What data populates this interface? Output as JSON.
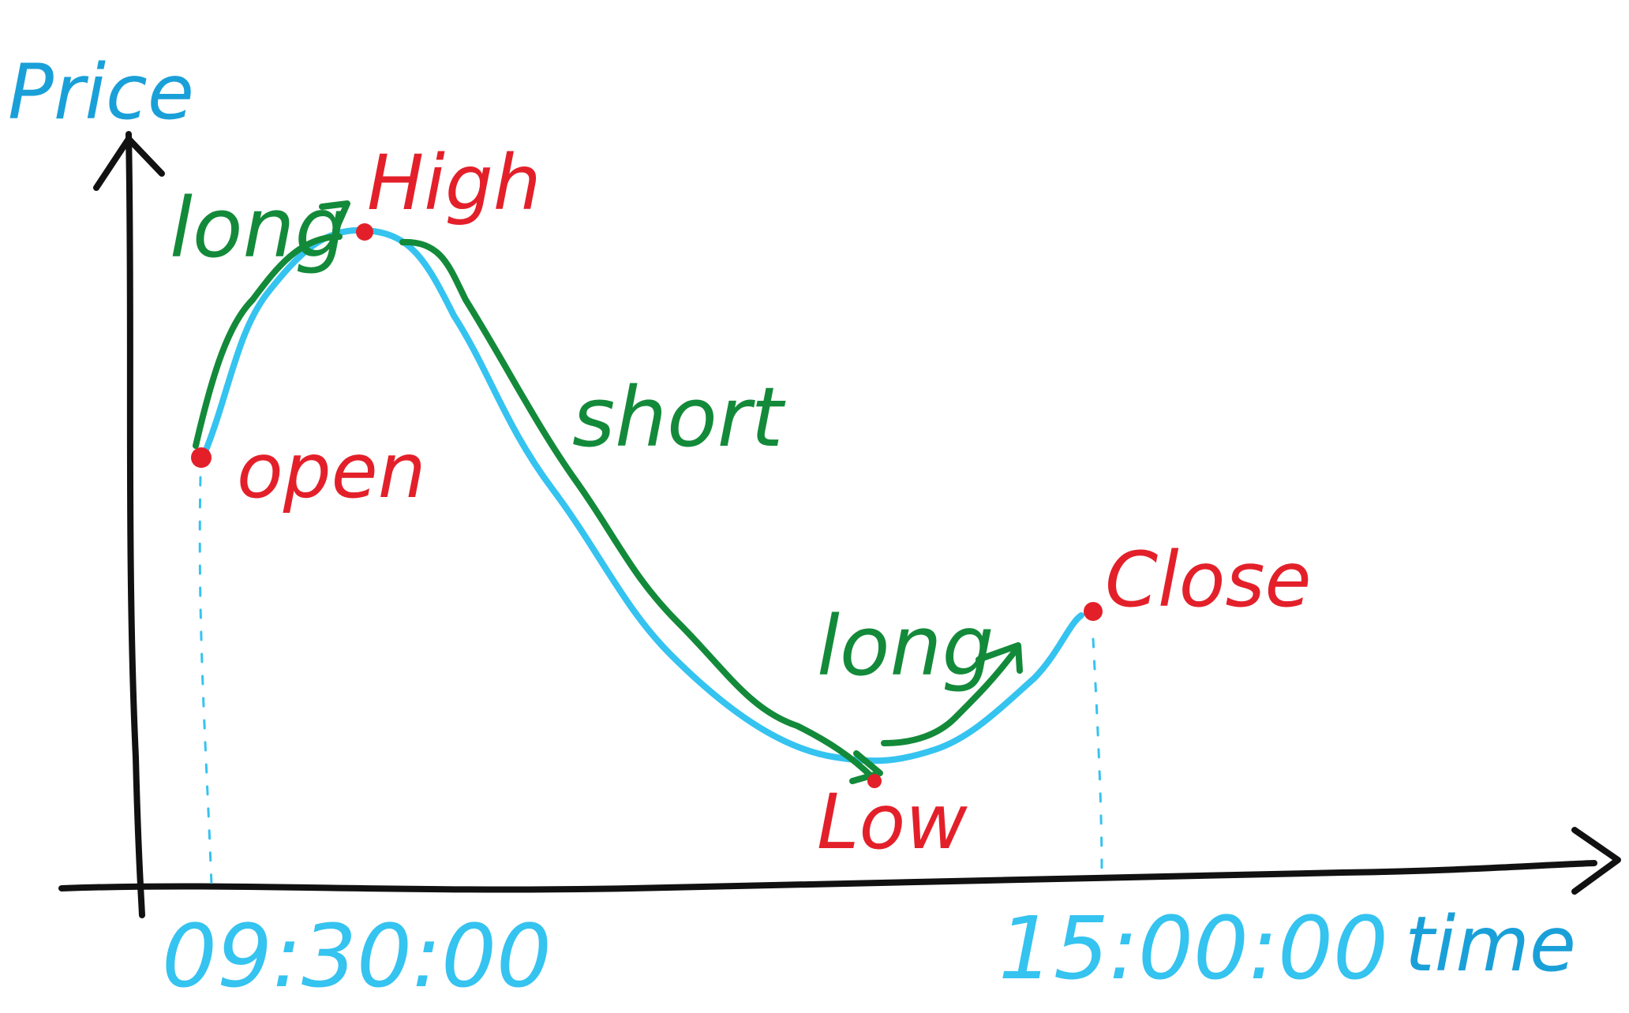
{
  "axes": {
    "y_label": "Price",
    "x_label": "time"
  },
  "time_ticks": {
    "start": "09:30:00",
    "end": "15:00:00"
  },
  "points": {
    "open": "open",
    "high": "High",
    "low": "Low",
    "close": "Close"
  },
  "trades": {
    "long_1": "long",
    "short": "short",
    "long_2": "long"
  },
  "colors": {
    "axis": "#111111",
    "price_curve": "#35c3f0",
    "trade_path": "#138a3a",
    "points": "#e3202a",
    "axis_label": "#1aa0d8",
    "time_label": "#35c3f0"
  }
}
